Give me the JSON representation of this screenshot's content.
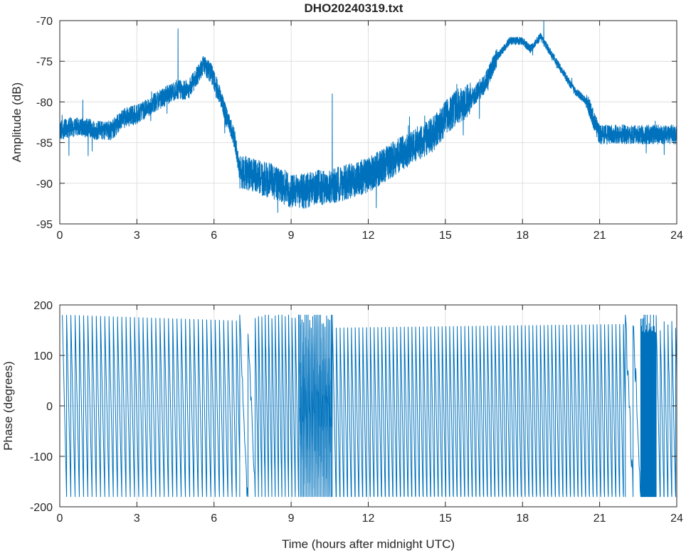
{
  "colors": {
    "series": "#0072bd",
    "axis": "#262626",
    "grid": "#dfdfdf"
  },
  "chart_data": [
    {
      "type": "line",
      "title": "DHO20240319.txt",
      "xlabel": "",
      "ylabel": "Amplitude (dB)",
      "xlim": [
        0,
        24
      ],
      "ylim": [
        -95,
        -70
      ],
      "xticks": [
        0,
        3,
        6,
        9,
        12,
        15,
        18,
        21,
        24
      ],
      "xtick_labels": [
        "0",
        "3",
        "6",
        "9",
        "12",
        "15",
        "18",
        "21",
        "24"
      ],
      "yticks": [
        -95,
        -90,
        -85,
        -80,
        -75,
        -70
      ],
      "ytick_labels": [
        "-95",
        "-90",
        "-85",
        "-80",
        "-75",
        "-70"
      ],
      "grid": true,
      "series": [
        {
          "noise": 1.2,
          "x": [
            0,
            0.5,
            1,
            1.5,
            2,
            2.5,
            3,
            3.5,
            4,
            4.5,
            5,
            5.3,
            5.6,
            5.9,
            6.2,
            6.5,
            6.8,
            7.0,
            7.5,
            8,
            8.5,
            9,
            9.5,
            10,
            10.5,
            11,
            11.5,
            12,
            12.5,
            13,
            13.5,
            14,
            14.5,
            15,
            15.5,
            16,
            16.5,
            17,
            17.5,
            18,
            18.3,
            18.7,
            19,
            19.5,
            20,
            20.5,
            21,
            21.5,
            22,
            22.5,
            23,
            23.5,
            24
          ],
          "y": [
            -83.5,
            -83,
            -83.2,
            -83.5,
            -83.5,
            -82,
            -81.5,
            -80.5,
            -79.5,
            -78.5,
            -78.5,
            -77,
            -75.5,
            -76.5,
            -79,
            -82,
            -84.5,
            -88.5,
            -89,
            -89.5,
            -90,
            -91,
            -91,
            -90.5,
            -90.5,
            -90,
            -89.5,
            -89,
            -88,
            -87,
            -86,
            -85,
            -84,
            -82,
            -80.5,
            -79.5,
            -78,
            -74.5,
            -72.5,
            -72.5,
            -73.5,
            -72,
            -73.5,
            -76,
            -78.5,
            -80,
            -84,
            -84,
            -84,
            -84,
            -84,
            -84,
            -84
          ]
        }
      ],
      "spikes": [
        {
          "x": 4.6,
          "y": -71
        },
        {
          "x": 10.6,
          "y": -79
        }
      ]
    },
    {
      "type": "line",
      "title": "",
      "xlabel": "Time (hours after midnight UTC)",
      "ylabel": "Phase (degrees)",
      "xlim": [
        0,
        24
      ],
      "ylim": [
        -200,
        200
      ],
      "xticks": [
        0,
        3,
        6,
        9,
        12,
        15,
        18,
        21,
        24
      ],
      "xtick_labels": [
        "0",
        "3",
        "6",
        "9",
        "12",
        "15",
        "18",
        "21",
        "24"
      ],
      "yticks": [
        -200,
        -100,
        0,
        100,
        200
      ],
      "ytick_labels": [
        "-200",
        "-100",
        "0",
        "100",
        "200"
      ],
      "grid": true,
      "phase_wrap": [
        -180,
        180
      ],
      "segments": [
        {
          "x_start": 0.1,
          "x_end": 7.0,
          "period_hours": 0.165,
          "jitter": 0
        },
        {
          "x_start": 7.0,
          "x_end": 7.6,
          "period_hours": 0.3,
          "jitter": 25
        },
        {
          "x_start": 7.6,
          "x_end": 9.3,
          "period_hours": 0.13,
          "jitter": 8
        },
        {
          "x_start": 9.3,
          "x_end": 10.6,
          "period_hours": 0.06,
          "jitter": 35
        },
        {
          "x_start": 10.6,
          "x_end": 22.0,
          "period_hours": 0.147,
          "jitter": 0
        },
        {
          "x_start": 22.0,
          "x_end": 22.6,
          "period_hours": 0.3,
          "jitter": 30
        },
        {
          "x_start": 22.6,
          "x_end": 23.2,
          "period_hours": 0.025,
          "jitter": 10
        },
        {
          "x_start": 23.2,
          "x_end": 24.0,
          "period_hours": 0.15,
          "jitter": 10
        }
      ]
    }
  ]
}
